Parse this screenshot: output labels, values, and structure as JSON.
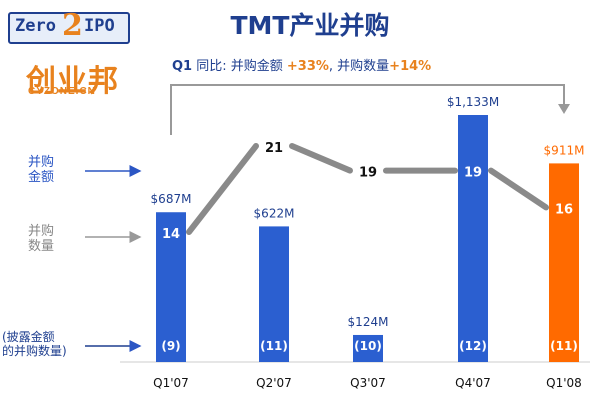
{
  "title": "TMT产业并购",
  "logos": {
    "zero2ipo": {
      "left": "Zero",
      "mid": "2",
      "right": "IPO"
    },
    "cyzone": {
      "main": "创业邦",
      "sub": "CYZONE.CN"
    }
  },
  "note": {
    "q": "Q1",
    "text1": " 同比: 并购金额 ",
    "pct1": "+33%",
    "text2": ", 并购数量",
    "pct2": "+14%"
  },
  "side_labels": {
    "amount": [
      "并购",
      "金额"
    ],
    "count": [
      "并购",
      "数量"
    ],
    "disclosed": [
      "(披露金额",
      "的并购数量)"
    ]
  },
  "colors": {
    "bar": "#2b5fd0",
    "highlight": "#ff6a00",
    "line": "#8a8a8a",
    "text": "#1f3f8f",
    "accent": "#e8821e"
  },
  "chart_data": {
    "type": "bar",
    "categories": [
      "Q1'07",
      "Q2'07",
      "Q3'07",
      "Q4'07",
      "Q1'08"
    ],
    "series": [
      {
        "values": [
          687,
          622,
          124,
          1133,
          911
        ],
        "labels": [
          "$687M",
          "$622M",
          "$124M",
          "$1,133M",
          "$911M"
        ]
      },
      {
        "values": [
          14,
          21,
          19,
          19,
          16
        ],
        "labels": [
          "14",
          "21",
          "19",
          "19",
          "16"
        ]
      },
      {
        "values": [
          9,
          11,
          10,
          12,
          11
        ],
        "labels": [
          "(9)",
          "(11)",
          "(10)",
          "(12)",
          "(11)"
        ]
      }
    ],
    "highlight_index": 4,
    "ylim": [
      0,
      1133
    ]
  }
}
